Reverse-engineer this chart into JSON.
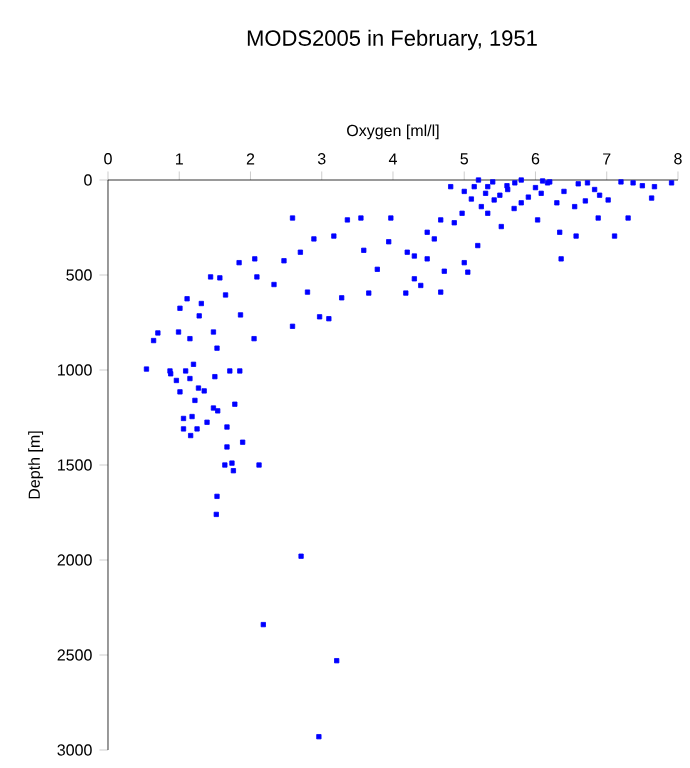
{
  "chart_data": {
    "type": "scatter",
    "title": "MODS2005 in February, 1951",
    "xlabel": "Oxygen [ml/l]",
    "ylabel": "Depth [m]",
    "xlim": [
      0,
      8
    ],
    "xticks": [
      0,
      1,
      2,
      3,
      4,
      5,
      6,
      7,
      8
    ],
    "ylim": [
      3000,
      0
    ],
    "yticks": [
      0,
      500,
      1000,
      1500,
      2000,
      2500,
      3000
    ],
    "marker": "square",
    "series": [
      {
        "color": "#0000ff",
        "x": [
          0.54,
          0.64,
          0.7,
          0.87,
          0.99,
          1.01,
          1.11,
          1.15,
          1.28,
          1.31,
          1.44,
          1.48,
          1.57,
          1.65,
          1.53,
          1.84,
          1.86,
          2.06,
          2.05,
          2.09,
          2.33,
          2.47,
          2.59,
          2.59,
          2.7,
          2.8,
          2.89,
          2.97,
          3.1,
          3.17,
          3.28,
          3.36,
          3.55,
          3.59,
          3.66,
          3.78,
          3.94,
          3.97,
          4.2,
          4.18,
          4.3,
          4.39,
          4.48,
          4.58,
          4.72,
          4.67,
          4.81,
          4.97,
          5.05,
          5.19,
          5.24,
          5.14,
          5.33,
          5.52,
          5.42,
          5.71,
          5.8,
          6.03,
          6.08,
          6.17,
          6.36,
          6.34,
          6.55,
          6.57,
          6.73,
          6.88,
          7.02,
          7.11,
          7.3,
          7.37,
          7.63,
          7.67,
          7.91,
          6.83,
          5.61,
          5.33,
          4.86,
          4.48,
          4.3,
          4.67,
          5.0,
          5.2,
          5.4,
          5.6,
          5.8,
          6.0,
          6.2,
          6.4,
          6.6,
          6.9,
          7.2,
          5.5,
          5.9,
          6.3,
          5.7,
          5.3,
          6.7,
          7.5,
          5.1,
          6.1,
          5.0,
          0.88,
          0.96,
          1.09,
          1.2,
          1.01,
          1.15,
          1.27,
          1.35,
          1.22,
          1.48,
          1.54,
          1.78,
          1.5,
          1.71,
          1.85,
          1.06,
          1.18,
          1.06,
          1.25,
          1.16,
          1.39,
          1.67,
          1.89,
          1.67,
          1.64,
          1.74,
          1.76,
          2.12,
          1.53,
          1.52,
          2.71,
          2.18,
          3.21,
          2.96
        ],
        "values": [
          995,
          845,
          805,
          1005,
          800,
          675,
          625,
          835,
          715,
          650,
          510,
          800,
          515,
          605,
          885,
          435,
          710,
          415,
          835,
          510,
          550,
          425,
          200,
          770,
          380,
          590,
          310,
          720,
          730,
          295,
          620,
          210,
          200,
          370,
          595,
          470,
          325,
          200,
          380,
          595,
          520,
          555,
          415,
          310,
          480,
          210,
          35,
          175,
          485,
          345,
          140,
          35,
          35,
          245,
          105,
          15,
          120,
          210,
          70,
          15,
          415,
          275,
          140,
          295,
          15,
          200,
          105,
          295,
          200,
          15,
          95,
          35,
          15,
          50,
          50,
          175,
          225,
          275,
          400,
          590,
          435,
          0,
          10,
          30,
          0,
          40,
          10,
          60,
          20,
          80,
          10,
          80,
          90,
          120,
          150,
          70,
          110,
          30,
          100,
          5,
          60,
          1020,
          1055,
          1005,
          970,
          1115,
          1045,
          1095,
          1110,
          1160,
          1200,
          1215,
          1180,
          1035,
          1005,
          1005,
          1255,
          1245,
          1310,
          1310,
          1345,
          1275,
          1300,
          1380,
          1405,
          1500,
          1490,
          1530,
          1500,
          1665,
          1760,
          1980,
          2340,
          2530,
          2930
        ]
      }
    ]
  }
}
